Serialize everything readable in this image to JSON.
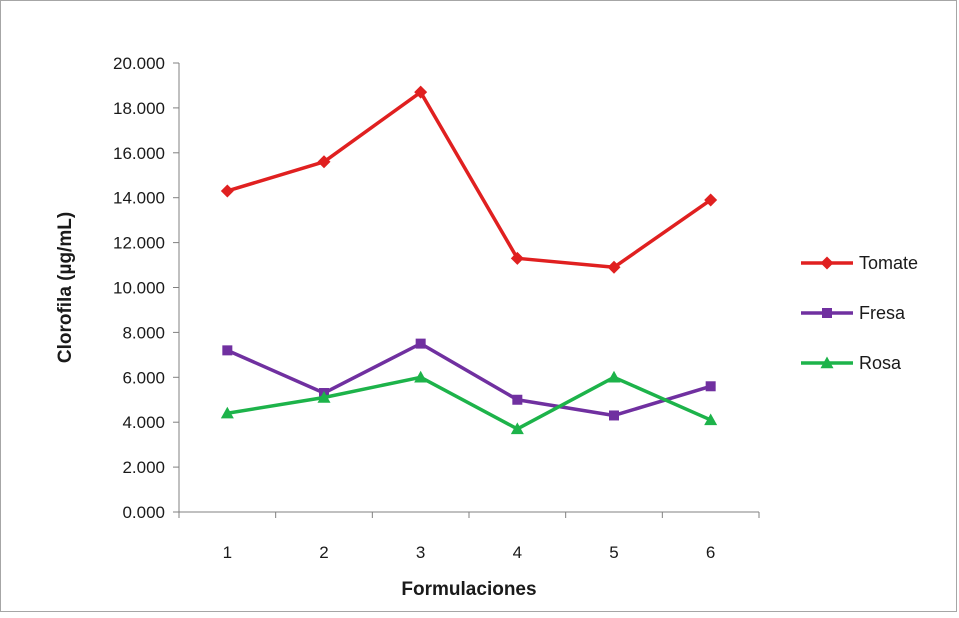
{
  "chart_data": {
    "type": "line",
    "title": "",
    "xlabel": "Formulaciones",
    "ylabel": "Clorofila (µg/mL)",
    "categories": [
      "1",
      "2",
      "3",
      "4",
      "5",
      "6"
    ],
    "ylim": [
      0,
      20
    ],
    "yticks": [
      0,
      2,
      4,
      6,
      8,
      10,
      12,
      14,
      16,
      18,
      20
    ],
    "ytick_labels": [
      "0.000",
      "2.000",
      "4.000",
      "6.000",
      "8.000",
      "10.000",
      "12.000",
      "14.000",
      "16.000",
      "18.000",
      "20.000"
    ],
    "grid": false,
    "legend_position": "right",
    "series": [
      {
        "name": "Tomate",
        "values": [
          14.3,
          15.6,
          18.7,
          11.3,
          10.9,
          13.9
        ],
        "color": "#e02020",
        "marker": "diamond"
      },
      {
        "name": "Fresa",
        "values": [
          7.2,
          5.3,
          7.5,
          5.0,
          4.3,
          5.6
        ],
        "color": "#7030a0",
        "marker": "square"
      },
      {
        "name": "Rosa",
        "values": [
          4.4,
          5.1,
          6.0,
          3.7,
          6.0,
          4.1
        ],
        "color": "#1db34a",
        "marker": "triangle"
      }
    ]
  }
}
